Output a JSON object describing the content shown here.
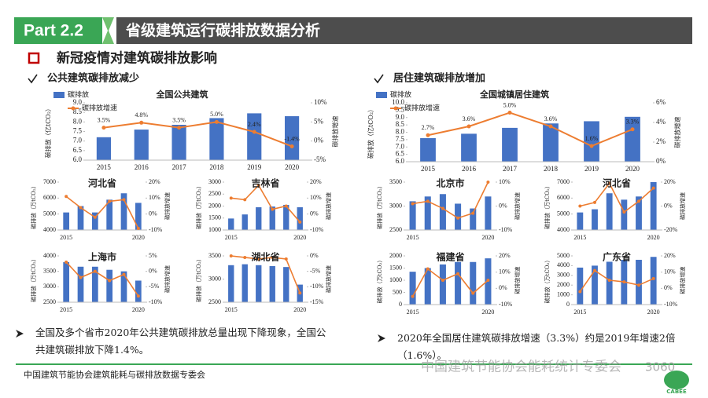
{
  "header": {
    "part": "Part 2.2",
    "title": "省级建筑运行碳排放数据分析"
  },
  "subtitle": "新冠疫情对建筑碳排放影响",
  "left_heading": "公共建筑碳排放减少",
  "right_heading": "居住建筑碳排放增加",
  "chart_data": [
    {
      "type": "bar-line",
      "title": "全国公共建筑",
      "ylabel": "碳排放（亿tCO₂）",
      "y2label": "碳排放增速",
      "categories": [
        "2015",
        "2016",
        "2017",
        "2018",
        "2019",
        "2020"
      ],
      "series": [
        {
          "name": "碳排放",
          "color": "#4472c4",
          "values": [
            7.2,
            7.6,
            7.85,
            8.2,
            8.45,
            8.3
          ]
        },
        {
          "name": "碳排放增速",
          "color": "#ed7d31",
          "axis": "y2",
          "values": [
            3.5,
            4.8,
            3.5,
            5.0,
            2.4,
            -1.4
          ],
          "value_labels": [
            "3.5%",
            "4.8%",
            "3.5%",
            "5.0%",
            "2.4%",
            "-1.4%"
          ]
        }
      ],
      "ylim": [
        6,
        9
      ],
      "yticks": [
        {
          "value": 6,
          "label": "6.0"
        },
        {
          "value": 6.5,
          "label": "6.5"
        },
        {
          "value": 7,
          "label": "7.0"
        },
        {
          "value": 7.5,
          "label": "7.5"
        },
        {
          "value": 8,
          "label": "8.0"
        },
        {
          "value": 8.5,
          "label": "8.5"
        },
        {
          "value": 9,
          "label": "9.0"
        }
      ],
      "y2lim": [
        -5,
        10
      ],
      "y2ticks": [
        {
          "value": -5,
          "label": "-5%"
        },
        {
          "value": 0,
          "label": "0%"
        },
        {
          "value": 5,
          "label": "5%"
        },
        {
          "value": 10,
          "label": "10%"
        }
      ]
    },
    {
      "type": "bar-line",
      "title": "全国城镇居住建筑",
      "ylabel": "碳排放（亿tCO₂）",
      "y2label": "碳排放增速",
      "categories": [
        "2015",
        "2016",
        "2017",
        "2018",
        "2019",
        "2020"
      ],
      "series": [
        {
          "name": "碳排放",
          "color": "#4472c4",
          "values": [
            7.6,
            7.9,
            8.3,
            8.6,
            8.75,
            9.05
          ]
        },
        {
          "name": "碳排放增速",
          "color": "#ed7d31",
          "axis": "y2",
          "values": [
            2.7,
            3.6,
            5.0,
            3.6,
            1.6,
            3.3
          ],
          "value_labels": [
            "2.7%",
            "3.6%",
            "5.0%",
            "3.6%",
            "1.6%",
            "3.3%"
          ]
        }
      ],
      "ylim": [
        6,
        10
      ],
      "yticks": [
        {
          "value": 6,
          "label": "6.0"
        },
        {
          "value": 6.5,
          "label": "6.5"
        },
        {
          "value": 7,
          "label": "7.0"
        },
        {
          "value": 7.5,
          "label": "7.5"
        },
        {
          "value": 8,
          "label": "8.0"
        },
        {
          "value": 8.5,
          "label": "8.5"
        },
        {
          "value": 9,
          "label": "9.0"
        },
        {
          "value": 9.5,
          "label": "9.5"
        },
        {
          "value": 10,
          "label": "10.0"
        }
      ],
      "y2lim": [
        0,
        6
      ],
      "y2ticks": [
        {
          "value": 0,
          "label": "0%"
        },
        {
          "value": 2,
          "label": "2%"
        },
        {
          "value": 4,
          "label": "4%"
        },
        {
          "value": 6,
          "label": "6%"
        }
      ]
    },
    {
      "type": "bar-line",
      "title": "河北省",
      "ylabel": "碳排放（万tCO₂）",
      "y2label": "碳排放增速",
      "categories": [
        "2015",
        null,
        null,
        null,
        null,
        "2020"
      ],
      "series": [
        {
          "color": "#4472c4",
          "values": [
            5100,
            5500,
            5100,
            5900,
            6300,
            5700
          ]
        },
        {
          "color": "#ed7d31",
          "axis": "y2",
          "values": [
            11,
            4,
            -2,
            8,
            9,
            -9
          ]
        }
      ],
      "ylim": [
        4000,
        7000
      ],
      "yticks": [
        4000,
        5000,
        6000,
        7000
      ],
      "y2lim": [
        -10,
        20
      ],
      "y2ticks": [
        {
          "value": -10,
          "label": "-10%"
        },
        {
          "value": 0,
          "label": "0%"
        },
        {
          "value": 10,
          "label": "10%"
        },
        {
          "value": 20,
          "label": "20%"
        }
      ]
    },
    {
      "type": "bar-line",
      "title": "吉林省",
      "ylabel": "碳排放（万tCO₂）",
      "y2label": "碳排放增速",
      "categories": [
        "2015",
        null,
        null,
        null,
        null,
        "2020"
      ],
      "series": [
        {
          "color": "#4472c4",
          "values": [
            1480,
            1650,
            1950,
            1980,
            2050,
            1950
          ]
        },
        {
          "color": "#ed7d31",
          "axis": "y2",
          "values": [
            10,
            9,
            18,
            3,
            5,
            -5
          ]
        }
      ],
      "ylim": [
        1000,
        3000
      ],
      "yticks": [
        1000,
        1500,
        2000,
        2500,
        3000
      ],
      "y2lim": [
        -10,
        20
      ],
      "y2ticks": [
        {
          "value": -10,
          "label": "-10%"
        },
        {
          "value": 0,
          "label": "0%"
        },
        {
          "value": 10,
          "label": "10%"
        },
        {
          "value": 20,
          "label": "20%"
        }
      ]
    },
    {
      "type": "bar-line",
      "title": "上海市",
      "ylabel": "碳排放（万tCO₂）",
      "y2label": "碳排放增速",
      "categories": [
        "2015",
        null,
        null,
        null,
        null,
        "2020"
      ],
      "series": [
        {
          "color": "#4472c4",
          "values": [
            3800,
            3650,
            3650,
            3550,
            3500,
            3200
          ]
        },
        {
          "color": "#ed7d31",
          "axis": "y2",
          "values": [
            3,
            -2,
            0,
            -3,
            -1,
            -8
          ]
        }
      ],
      "ylim": [
        2500,
        4000
      ],
      "yticks": [
        2500,
        3000,
        3500,
        4000
      ],
      "y2lim": [
        -10,
        5
      ],
      "y2ticks": [
        {
          "value": -10,
          "label": "-10%"
        },
        {
          "value": -5,
          "label": "-5%"
        },
        {
          "value": 0,
          "label": "0%"
        },
        {
          "value": 5,
          "label": "5%"
        }
      ]
    },
    {
      "type": "bar-line",
      "title": "湖北省",
      "ylabel": "碳排放（万tCO₂）",
      "y2label": "碳排放增速",
      "categories": [
        "2015",
        null,
        null,
        null,
        null,
        "2020"
      ],
      "series": [
        {
          "color": "#4472c4",
          "values": [
            3300,
            3320,
            3300,
            3280,
            3260,
            2880
          ]
        },
        {
          "color": "#ed7d31",
          "axis": "y2",
          "values": [
            0,
            -0.5,
            -1,
            -0.5,
            -1,
            -12
          ]
        }
      ],
      "ylim": [
        2500,
        3500
      ],
      "yticks": [
        2500,
        3000,
        3500
      ],
      "y2lim": [
        -15,
        0
      ],
      "y2ticks": [
        {
          "value": -15,
          "label": "-15%"
        },
        {
          "value": -10,
          "label": "-10%"
        },
        {
          "value": -5,
          "label": "-5%"
        },
        {
          "value": 0,
          "label": "0%"
        }
      ]
    },
    {
      "type": "bar-line",
      "title": "北京市",
      "ylabel": "碳排放（万tCO₂）",
      "y2label": "碳排放增速",
      "categories": [
        "2015",
        null,
        null,
        null,
        null,
        "2020"
      ],
      "series": [
        {
          "color": "#4472c4",
          "values": [
            3100,
            3200,
            3250,
            3050,
            2950,
            3200
          ]
        },
        {
          "color": "#ed7d31",
          "axis": "y2",
          "values": [
            1,
            2,
            -1,
            -5,
            -3,
            10
          ]
        }
      ],
      "ylim": [
        2500,
        3500
      ],
      "yticks": [
        2500,
        3000,
        3500
      ],
      "y2lim": [
        -10,
        10
      ],
      "y2ticks": [
        {
          "value": -10,
          "label": "-10%"
        },
        {
          "value": 0,
          "label": "0%"
        },
        {
          "value": 10,
          "label": "10%"
        }
      ]
    },
    {
      "type": "bar-line",
      "title": "河北省",
      "ylabel": "碳排放（万tCO₂）",
      "y2label": "碳排放增速",
      "categories": [
        "2015",
        null,
        null,
        null,
        null,
        "2020"
      ],
      "series": [
        {
          "color": "#4472c4",
          "values": [
            5100,
            5300,
            6300,
            5900,
            6100,
            7000
          ]
        },
        {
          "color": "#ed7d31",
          "axis": "y2",
          "values": [
            0,
            3,
            19,
            -5,
            4,
            15
          ]
        }
      ],
      "ylim": [
        4000,
        7000
      ],
      "yticks": [
        4000,
        5000,
        6000,
        7000
      ],
      "y2lim": [
        -20,
        20
      ],
      "y2ticks": [
        {
          "value": -20,
          "label": "-20%"
        },
        {
          "value": 0,
          "label": "0%"
        },
        {
          "value": 20,
          "label": "20%"
        }
      ]
    },
    {
      "type": "bar-line",
      "title": "福建省",
      "ylabel": "碳排放（万tCO₂）",
      "y2label": "碳排放增速",
      "categories": [
        "2015",
        null,
        null,
        null,
        null,
        "2020"
      ],
      "series": [
        {
          "color": "#4472c4",
          "values": [
            1350,
            1500,
            1650,
            1750,
            1750,
            1900
          ]
        },
        {
          "color": "#ed7d31",
          "axis": "y2",
          "values": [
            -5,
            12,
            5,
            9,
            -3,
            5
          ]
        }
      ],
      "ylim": [
        0,
        2000
      ],
      "yticks": [
        0,
        500,
        1000,
        1500,
        2000
      ],
      "y2lim": [
        -10,
        20
      ],
      "y2ticks": [
        {
          "value": -10,
          "label": "-10%"
        },
        {
          "value": 0,
          "label": "0%"
        },
        {
          "value": 10,
          "label": "10%"
        },
        {
          "value": 20,
          "label": "20%"
        }
      ]
    },
    {
      "type": "bar-line",
      "title": "广东省",
      "ylabel": "碳排放（万tCO₂）",
      "y2label": "碳排放增速",
      "categories": [
        "2015",
        null,
        null,
        null,
        null,
        "2020"
      ],
      "series": [
        {
          "color": "#4472c4",
          "values": [
            3800,
            4000,
            4400,
            4600,
            4600,
            4900
          ]
        },
        {
          "color": "#ed7d31",
          "axis": "y2",
          "values": [
            -2,
            11,
            5,
            4,
            2,
            6
          ]
        }
      ],
      "ylim": [
        0,
        5000
      ],
      "yticks": [
        0,
        1000,
        2000,
        3000,
        4000,
        5000
      ],
      "y2lim": [
        -10,
        20
      ],
      "y2ticks": [
        {
          "value": -10,
          "label": "-10%"
        },
        {
          "value": 0,
          "label": "0%"
        },
        {
          "value": 10,
          "label": "10%"
        },
        {
          "value": 20,
          "label": "20%"
        }
      ]
    }
  ],
  "bullets": [
    "全国及多个省市2020年公共建筑碳排放总量出现下降现象，全国公共建筑碳排放下降1.4%。",
    "2020年全国居住建筑碳排放增速（3.3%）约是2019年增速2倍（1.6%）。"
  ],
  "footer": "中国建筑节能协会建筑能耗与碳排放数据专委会",
  "watermark": "中国建筑节能协会能耗统计专委会",
  "watermark_number": "3060",
  "logo": "CABEE"
}
